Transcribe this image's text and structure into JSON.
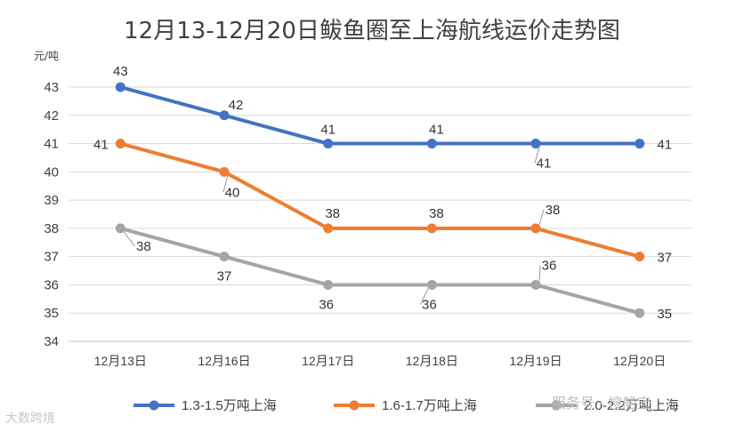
{
  "chart_data": {
    "type": "line",
    "title": "12月13-12月20日鲅鱼圈至上海航线运价走势图",
    "ylabel": "元/吨",
    "xlabel": "",
    "categories": [
      "12月13日",
      "12月16日",
      "12月17日",
      "12月18日",
      "12月19日",
      "12月20日"
    ],
    "ylim": [
      34,
      43
    ],
    "yticks": [
      34,
      35,
      36,
      37,
      38,
      39,
      40,
      41,
      42,
      43
    ],
    "grid": true,
    "legend_position": "bottom",
    "series": [
      {
        "name": "1.3-1.5万吨上海",
        "color": "#4472c4",
        "values": [
          43,
          42,
          41,
          41,
          41,
          41
        ]
      },
      {
        "name": "1.6-1.7万吨上海",
        "color": "#ed7d31",
        "values": [
          41,
          40,
          38,
          38,
          38,
          37
        ]
      },
      {
        "name": "2.0-2.2万吨上海",
        "color": "#a5a5a5",
        "values": [
          38,
          37,
          36,
          36,
          36,
          35
        ]
      }
    ]
  },
  "watermarks": {
    "left": "大数跨境",
    "right": "服务号 · 搜船宝"
  }
}
